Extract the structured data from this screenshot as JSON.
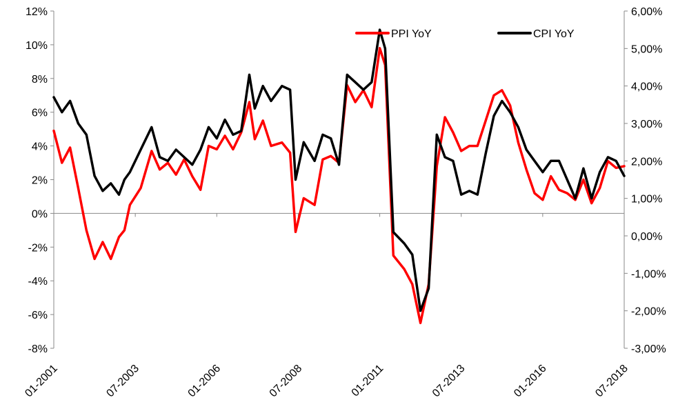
{
  "chart_data": {
    "type": "line",
    "title": "",
    "xlabel": "",
    "ylabel": "",
    "y2label": "",
    "x_range": [
      "2001-01",
      "2018-07"
    ],
    "x_tick_labels": [
      "01-2001",
      "07-2003",
      "01-2006",
      "07-2008",
      "01-2011",
      "07-2013",
      "01-2016",
      "07-2018"
    ],
    "x_tick_positions": [
      "2001-01",
      "2003-07",
      "2006-01",
      "2008-07",
      "2011-01",
      "2013-07",
      "2016-01",
      "2018-07"
    ],
    "ylim": [
      -8,
      12
    ],
    "y_ticks": [
      -8,
      -6,
      -4,
      -2,
      0,
      2,
      4,
      6,
      8,
      10,
      12
    ],
    "y_tick_labels": [
      "-8%",
      "-6%",
      "-4%",
      "-2%",
      "0%",
      "2%",
      "4%",
      "6%",
      "8%",
      "10%",
      "12%"
    ],
    "y2lim": [
      -3,
      6
    ],
    "y2_ticks": [
      -3,
      -2,
      -1,
      0,
      1,
      2,
      3,
      4,
      5,
      6
    ],
    "y2_tick_labels": [
      "-3,00%",
      "-2,00%",
      "-1,00%",
      "0,00%",
      "1,00%",
      "2,00%",
      "3,00%",
      "4,00%",
      "5,00%",
      "6,00%"
    ],
    "grid": false,
    "legend_position": "top-right",
    "series": [
      {
        "name": "PPI YoY",
        "axis": "left",
        "color": "#ff0000",
        "points": [
          [
            "2001-01",
            4.9
          ],
          [
            "2001-04",
            3.0
          ],
          [
            "2001-07",
            3.9
          ],
          [
            "2001-10",
            1.5
          ],
          [
            "2002-01",
            -1.0
          ],
          [
            "2002-04",
            -2.7
          ],
          [
            "2002-07",
            -1.7
          ],
          [
            "2002-10",
            -2.7
          ],
          [
            "2003-01",
            -1.4
          ],
          [
            "2003-03",
            -1.0
          ],
          [
            "2003-05",
            0.5
          ],
          [
            "2003-09",
            1.5
          ],
          [
            "2004-01",
            3.7
          ],
          [
            "2004-04",
            2.6
          ],
          [
            "2004-07",
            3.0
          ],
          [
            "2004-10",
            2.3
          ],
          [
            "2005-01",
            3.2
          ],
          [
            "2005-04",
            2.2
          ],
          [
            "2005-07",
            1.4
          ],
          [
            "2005-10",
            4.0
          ],
          [
            "2006-01",
            3.8
          ],
          [
            "2006-04",
            4.6
          ],
          [
            "2006-07",
            3.8
          ],
          [
            "2006-10",
            4.8
          ],
          [
            "2007-01",
            6.6
          ],
          [
            "2007-03",
            4.4
          ],
          [
            "2007-06",
            5.5
          ],
          [
            "2007-09",
            4.0
          ],
          [
            "2008-01",
            4.2
          ],
          [
            "2008-04",
            3.6
          ],
          [
            "2008-06",
            -1.1
          ],
          [
            "2008-09",
            0.9
          ],
          [
            "2009-01",
            0.5
          ],
          [
            "2009-04",
            3.2
          ],
          [
            "2009-07",
            3.4
          ],
          [
            "2009-10",
            3.0
          ],
          [
            "2010-01",
            7.6
          ],
          [
            "2010-04",
            6.6
          ],
          [
            "2010-07",
            7.3
          ],
          [
            "2010-10",
            6.3
          ],
          [
            "2011-01",
            9.8
          ],
          [
            "2011-03",
            8.8
          ],
          [
            "2011-06",
            -2.5
          ],
          [
            "2011-10",
            -3.3
          ],
          [
            "2012-01",
            -4.2
          ],
          [
            "2012-04",
            -6.5
          ],
          [
            "2012-07",
            -4.2
          ],
          [
            "2012-10",
            2.8
          ],
          [
            "2013-01",
            5.7
          ],
          [
            "2013-04",
            4.8
          ],
          [
            "2013-07",
            3.7
          ],
          [
            "2013-10",
            4.0
          ],
          [
            "2014-01",
            4.0
          ],
          [
            "2014-04",
            5.5
          ],
          [
            "2014-07",
            7.0
          ],
          [
            "2014-10",
            7.3
          ],
          [
            "2015-01",
            6.4
          ],
          [
            "2015-04",
            4.2
          ],
          [
            "2015-07",
            2.6
          ],
          [
            "2015-10",
            1.2
          ],
          [
            "2016-01",
            0.8
          ],
          [
            "2016-04",
            2.2
          ],
          [
            "2016-07",
            1.4
          ],
          [
            "2016-10",
            1.2
          ],
          [
            "2017-01",
            0.8
          ],
          [
            "2017-04",
            2.0
          ],
          [
            "2017-07",
            0.6
          ],
          [
            "2017-10",
            1.5
          ],
          [
            "2018-01",
            3.1
          ],
          [
            "2018-04",
            2.7
          ],
          [
            "2018-07",
            2.8
          ]
        ]
      },
      {
        "name": "CPI YoY",
        "axis": "right",
        "color": "#000000",
        "points": [
          [
            "2001-01",
            3.7
          ],
          [
            "2001-04",
            3.3
          ],
          [
            "2001-07",
            3.6
          ],
          [
            "2001-10",
            3.0
          ],
          [
            "2002-01",
            2.7
          ],
          [
            "2002-04",
            1.6
          ],
          [
            "2002-07",
            1.2
          ],
          [
            "2002-10",
            1.4
          ],
          [
            "2003-01",
            1.1
          ],
          [
            "2003-03",
            1.5
          ],
          [
            "2003-05",
            1.7
          ],
          [
            "2003-09",
            2.3
          ],
          [
            "2004-01",
            2.9
          ],
          [
            "2004-04",
            2.1
          ],
          [
            "2004-07",
            2.0
          ],
          [
            "2004-10",
            2.3
          ],
          [
            "2005-01",
            2.1
          ],
          [
            "2005-04",
            1.9
          ],
          [
            "2005-07",
            2.3
          ],
          [
            "2005-10",
            2.9
          ],
          [
            "2006-01",
            2.6
          ],
          [
            "2006-04",
            3.1
          ],
          [
            "2006-07",
            2.7
          ],
          [
            "2006-10",
            2.8
          ],
          [
            "2007-01",
            4.3
          ],
          [
            "2007-03",
            3.4
          ],
          [
            "2007-06",
            4.0
          ],
          [
            "2007-09",
            3.6
          ],
          [
            "2008-01",
            4.0
          ],
          [
            "2008-04",
            3.9
          ],
          [
            "2008-06",
            1.5
          ],
          [
            "2008-09",
            2.5
          ],
          [
            "2009-01",
            2.0
          ],
          [
            "2009-04",
            2.7
          ],
          [
            "2009-07",
            2.6
          ],
          [
            "2009-10",
            1.9
          ],
          [
            "2010-01",
            4.3
          ],
          [
            "2010-04",
            4.1
          ],
          [
            "2010-07",
            3.9
          ],
          [
            "2010-10",
            4.1
          ],
          [
            "2011-01",
            5.5
          ],
          [
            "2011-03",
            5.0
          ],
          [
            "2011-06",
            0.1
          ],
          [
            "2011-10",
            -0.2
          ],
          [
            "2012-01",
            -0.5
          ],
          [
            "2012-04",
            -2.0
          ],
          [
            "2012-07",
            -1.4
          ],
          [
            "2012-10",
            2.7
          ],
          [
            "2013-01",
            2.1
          ],
          [
            "2013-04",
            2.0
          ],
          [
            "2013-07",
            1.1
          ],
          [
            "2013-10",
            1.2
          ],
          [
            "2014-01",
            1.1
          ],
          [
            "2014-04",
            2.2
          ],
          [
            "2014-07",
            3.2
          ],
          [
            "2014-10",
            3.6
          ],
          [
            "2015-01",
            3.3
          ],
          [
            "2015-04",
            2.9
          ],
          [
            "2015-07",
            2.3
          ],
          [
            "2015-10",
            2.0
          ],
          [
            "2016-01",
            1.7
          ],
          [
            "2016-04",
            2.0
          ],
          [
            "2016-07",
            2.0
          ],
          [
            "2016-10",
            1.5
          ],
          [
            "2017-01",
            1.0
          ],
          [
            "2017-04",
            1.8
          ],
          [
            "2017-07",
            1.0
          ],
          [
            "2017-10",
            1.7
          ],
          [
            "2018-01",
            2.1
          ],
          [
            "2018-04",
            2.0
          ],
          [
            "2018-07",
            1.6
          ]
        ]
      }
    ]
  }
}
